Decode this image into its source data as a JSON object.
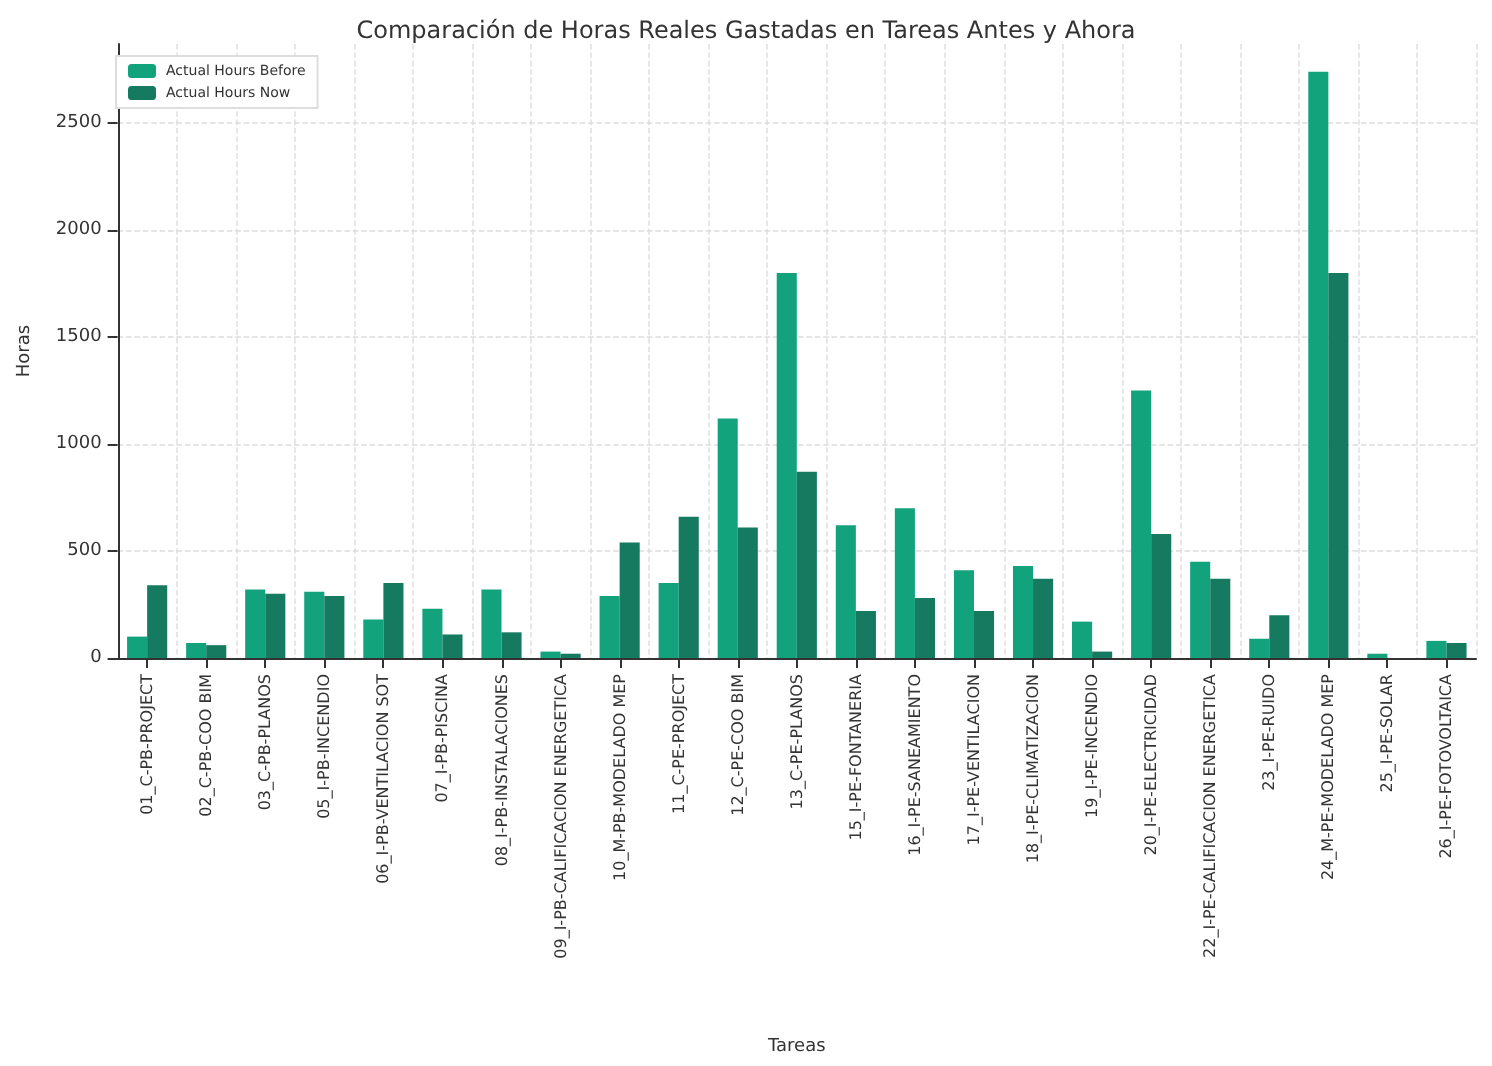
{
  "chart_data": {
    "type": "bar",
    "title": "Comparación de Horas Reales Gastadas en Tareas Antes y Ahora",
    "xlabel": "Tareas",
    "ylabel": "Horas",
    "categories": [
      "01_C-PB-PROJECT",
      "02_C-PB-COO BIM",
      "03_C-PB-PLANOS",
      "05_I-PB-INCENDIO",
      "06_I-PB-VENTILACION SOT",
      "07_I-PB-PISCINA",
      "08_I-PB-INSTALACIONES",
      "09_I-PB-CALIFICACION ENERGETICA",
      "10_M-PB-MODELADO MEP",
      "11_C-PE-PROJECT",
      "12_C-PE-COO BIM",
      "13_C-PE-PLANOS",
      "15_I-PE-FONTANERIA",
      "16_I-PE-SANEAMIENTO",
      "17_I-PE-VENTILACION",
      "18_I-PE-CLIMATIZACION",
      "19_I-PE-INCENDIO",
      "20_I-PE-ELECTRICIDAD",
      "22_I-PE-CALIFICACION ENERGETICA",
      "23_I-PE-RUIDO",
      "24_M-PE-MODELADO MEP",
      "25_I-PE-SOLAR",
      "26_I-PE-FOTOVOLTAICA"
    ],
    "series": [
      {
        "name": "Actual Hours Before",
        "color": "#12a37c",
        "values": [
          100,
          70,
          320,
          310,
          180,
          230,
          320,
          30,
          290,
          350,
          1120,
          1800,
          620,
          700,
          410,
          430,
          170,
          1250,
          450,
          90,
          2740,
          20,
          80
        ]
      },
      {
        "name": "Actual Hours Now",
        "color": "#157a5f",
        "values": [
          340,
          60,
          300,
          290,
          350,
          110,
          120,
          20,
          540,
          660,
          610,
          870,
          220,
          280,
          220,
          370,
          30,
          580,
          370,
          200,
          1800,
          0,
          70
        ]
      }
    ],
    "ylim": [
      0,
      2870
    ],
    "yticks": [
      0,
      500,
      1000,
      1500,
      2000,
      2500
    ],
    "grid": true,
    "legend": "top left"
  }
}
